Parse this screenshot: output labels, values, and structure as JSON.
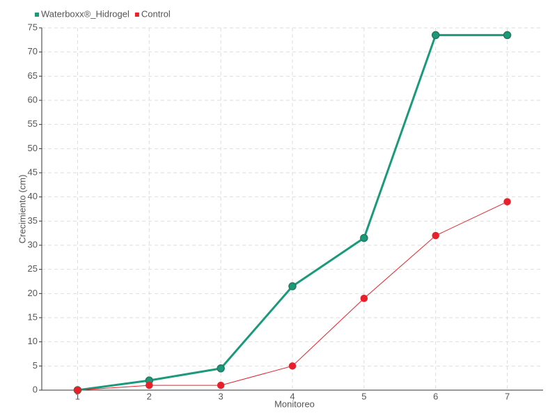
{
  "chart_data": {
    "type": "line",
    "x_label": "Monitoreo",
    "y_label": "Crecimiento (cm)",
    "categories": [
      "1",
      "2",
      "3",
      "4",
      "5",
      "6",
      "7"
    ],
    "series": [
      {
        "name": "Waterboxx®_Hidrogel",
        "color": "#1a9a7a",
        "values": [
          0,
          2,
          4.5,
          21.5,
          31.5,
          73.5,
          73.5
        ]
      },
      {
        "name": "Control",
        "color": "#e8202a",
        "values": [
          0,
          1,
          1,
          5,
          19,
          32,
          39
        ]
      }
    ],
    "ylim": [
      0,
      75
    ],
    "yticks": [
      0,
      5,
      10,
      15,
      20,
      25,
      30,
      35,
      40,
      45,
      50,
      55,
      60,
      65,
      70,
      75
    ],
    "grid": true,
    "legend": "top-left"
  }
}
